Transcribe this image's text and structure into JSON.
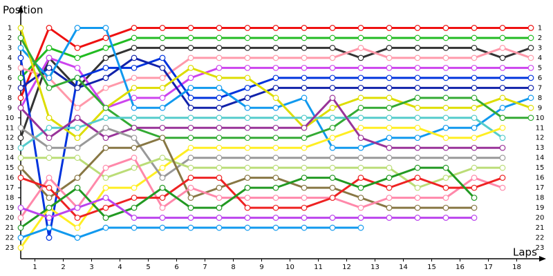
{
  "chart_data": {
    "type": "line",
    "title": "Position",
    "x_label": "Laps",
    "x": [
      0,
      1,
      2,
      3,
      4,
      5,
      6,
      7,
      8,
      9,
      10,
      11,
      12,
      13,
      14,
      15,
      16,
      17,
      18
    ],
    "xlim": [
      0,
      18.5
    ],
    "xticks": [
      {
        "value": 0.5,
        "label": "1"
      },
      {
        "value": 1.5,
        "label": "2"
      },
      {
        "value": 2.5,
        "label": "3"
      },
      {
        "value": 3.5,
        "label": "4"
      },
      {
        "value": 4.5,
        "label": "5"
      },
      {
        "value": 5.5,
        "label": "6"
      },
      {
        "value": 6.5,
        "label": "7"
      },
      {
        "value": 7.5,
        "label": "8"
      },
      {
        "value": 8.5,
        "label": "9"
      },
      {
        "value": 9.5,
        "label": "10"
      },
      {
        "value": 10.5,
        "label": "11"
      },
      {
        "value": 11.5,
        "label": "12"
      },
      {
        "value": 12.5,
        "label": "13"
      },
      {
        "value": 13.5,
        "label": "14"
      },
      {
        "value": 14.5,
        "label": "15"
      },
      {
        "value": 15.5,
        "label": "16"
      },
      {
        "value": 16.5,
        "label": "17"
      },
      {
        "value": 17.5,
        "label": "18"
      }
    ],
    "ylim": [
      24,
      -1
    ],
    "y_inverted": true,
    "yticks": [
      1,
      2,
      3,
      4,
      5,
      6,
      7,
      8,
      9,
      10,
      11,
      12,
      13,
      14,
      15,
      16,
      17,
      18,
      19,
      20,
      21,
      22,
      23
    ],
    "series": [
      {
        "color": "#ee1111",
        "values": [
          8,
          1,
          3,
          2,
          1,
          1,
          1,
          1,
          1,
          1,
          1,
          1,
          1,
          1,
          1,
          1,
          1,
          1,
          1
        ]
      },
      {
        "color": "#22bb22",
        "values": [
          6,
          3,
          4,
          3,
          2,
          2,
          2,
          2,
          2,
          2,
          2,
          2,
          2,
          2,
          2,
          2,
          2,
          2,
          2
        ]
      },
      {
        "color": "#333333",
        "values": [
          12,
          4,
          7,
          4,
          3,
          3,
          3,
          3,
          3,
          3,
          3,
          3,
          4,
          3,
          3,
          3,
          3,
          4,
          3
        ]
      },
      {
        "color": "#ff99aa",
        "values": [
          5,
          6,
          9,
          7,
          6,
          6,
          4,
          4,
          4,
          4,
          4,
          4,
          3,
          4,
          4,
          4,
          4,
          3,
          4
        ]
      },
      {
        "color": "#cc44ee",
        "values": [
          9,
          4,
          5,
          9,
          8,
          8,
          6,
          5,
          5,
          5,
          5,
          5,
          5,
          5,
          5,
          5,
          5,
          5,
          5
        ]
      },
      {
        "color": "#0033dd",
        "values": [
          4,
          22,
          6,
          5,
          5,
          4,
          8,
          8,
          7,
          6,
          6,
          6,
          6,
          6,
          6,
          6,
          6,
          6,
          6
        ]
      },
      {
        "color": "#1122aa",
        "values": [
          7,
          5,
          7,
          6,
          4,
          5,
          9,
          9,
          8,
          7,
          7,
          7,
          7,
          7,
          7,
          7,
          7,
          7,
          7
        ]
      },
      {
        "color": "#1199ee",
        "values": [
          3,
          6,
          1,
          1,
          9,
          9,
          7,
          7,
          9,
          9,
          8,
          13,
          13,
          12,
          12,
          11,
          11,
          9,
          8
        ]
      },
      {
        "color": "#dddd00",
        "values": [
          1,
          10,
          12,
          9,
          7,
          7,
          5,
          6,
          6,
          8,
          11,
          9,
          8,
          8,
          9,
          9,
          9,
          8,
          9
        ]
      },
      {
        "color": "#33aa33",
        "values": [
          2,
          7,
          6,
          9,
          11,
          12,
          12,
          12,
          12,
          12,
          12,
          11,
          9,
          9,
          8,
          8,
          8,
          10,
          10
        ]
      },
      {
        "color": "#55cccc",
        "values": [
          13,
          11,
          11,
          10,
          10,
          10,
          10,
          10,
          10,
          10,
          10,
          10,
          10,
          10,
          10,
          10,
          10,
          12,
          null
        ]
      },
      {
        "color": "#ffee22",
        "values": [
          23,
          19,
          21,
          17,
          17,
          15,
          13,
          13,
          13,
          13,
          13,
          12,
          11,
          11,
          11,
          12,
          12,
          11,
          null
        ]
      },
      {
        "color": "#993399",
        "values": [
          9,
          12,
          10,
          12,
          11,
          11,
          11,
          11,
          11,
          11,
          11,
          8,
          12,
          13,
          13,
          13,
          13,
          13,
          null
        ]
      },
      {
        "color": "#999999",
        "values": [
          11,
          13,
          13,
          11,
          12,
          16,
          14,
          14,
          14,
          14,
          14,
          14,
          14,
          14,
          14,
          14,
          14,
          14,
          null
        ]
      },
      {
        "color": "#bbdd77",
        "values": [
          14,
          14,
          14,
          16,
          15,
          14,
          15,
          15,
          15,
          15,
          15,
          15,
          15,
          15,
          17,
          16,
          15,
          15,
          null
        ]
      },
      {
        "color": "#887744",
        "values": [
          15,
          18,
          16,
          13,
          13,
          12,
          18,
          17,
          16,
          16,
          17,
          17,
          18,
          19,
          19,
          19,
          19,
          null,
          null
        ]
      },
      {
        "color": "#ff88aa",
        "values": [
          20,
          16,
          19,
          15,
          14,
          19,
          17,
          18,
          18,
          18,
          18,
          18,
          19,
          18,
          18,
          18,
          16,
          17,
          null
        ]
      },
      {
        "color": "#ee2222",
        "values": [
          16,
          17,
          20,
          19,
          18,
          18,
          16,
          16,
          19,
          19,
          19,
          18,
          16,
          17,
          16,
          17,
          17,
          16,
          null
        ]
      },
      {
        "color": "#229922",
        "values": [
          21,
          19,
          17,
          20,
          19,
          17,
          19,
          19,
          17,
          17,
          16,
          16,
          17,
          16,
          15,
          15,
          18,
          null,
          null
        ]
      },
      {
        "color": "#bb44ee",
        "values": [
          19,
          20,
          19,
          18,
          20,
          20,
          20,
          20,
          20,
          20,
          20,
          20,
          20,
          20,
          20,
          20,
          20,
          null,
          null
        ]
      },
      {
        "color": "#1199ee",
        "values": [
          22,
          21,
          22,
          21,
          21,
          21,
          21,
          21,
          21,
          21,
          21,
          21,
          21,
          null,
          null,
          null,
          null,
          null,
          null
        ]
      }
    ]
  }
}
